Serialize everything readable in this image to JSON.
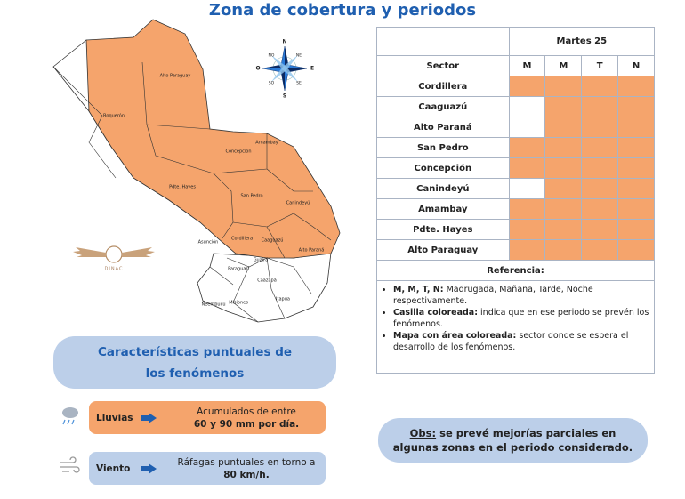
{
  "title": "Zona de cobertura y periodos",
  "map": {
    "labels": [
      "Alto Paraguay",
      "Boquerón",
      "Pdte. Hayes",
      "Concepción",
      "Amambay",
      "San Pedro",
      "Canindeyú",
      "Cordillera",
      "Caaguazú",
      "Alto Paraná",
      "Asunción",
      "Paraguarí",
      "Guairá",
      "Caazapá",
      "Ñeembucú",
      "Misiones",
      "Itapúa"
    ],
    "compass": [
      "N",
      "NO",
      "NE",
      "O",
      "E",
      "SO",
      "SE",
      "S"
    ],
    "logo": "DINAC",
    "color": "#f5a46c"
  },
  "table": {
    "day": "Martes 25",
    "sector_header": "Sector",
    "periods": [
      "M",
      "M",
      "T",
      "N"
    ],
    "active_color": "#f5a46c",
    "rows": [
      {
        "sector": "Cordillera",
        "active": [
          true,
          true,
          true,
          true
        ]
      },
      {
        "sector": "Caaguazú",
        "active": [
          false,
          true,
          true,
          true
        ]
      },
      {
        "sector": "Alto Paraná",
        "active": [
          false,
          true,
          true,
          true
        ]
      },
      {
        "sector": "San Pedro",
        "active": [
          true,
          true,
          true,
          true
        ]
      },
      {
        "sector": "Concepción",
        "active": [
          true,
          true,
          true,
          true
        ]
      },
      {
        "sector": "Canindeyú",
        "active": [
          false,
          true,
          true,
          true
        ]
      },
      {
        "sector": "Amambay",
        "active": [
          true,
          true,
          true,
          true
        ]
      },
      {
        "sector": "Pdte. Hayes",
        "active": [
          true,
          true,
          true,
          true
        ]
      },
      {
        "sector": "Alto Paraguay",
        "active": [
          true,
          true,
          true,
          true
        ]
      }
    ],
    "reference_header": "Referencia:",
    "notes": [
      {
        "bold": "M, M, T, N:",
        "text": " Madrugada, Mañana, Tarde, Noche respectivamente."
      },
      {
        "bold": "Casilla coloreada:",
        "text": " indica que en ese periodo se prevén los fenómenos."
      },
      {
        "bold": "Mapa con área coloreada:",
        "text": " sector donde se espera el desarrollo de los fenómenos."
      }
    ]
  },
  "features": {
    "title": "Características puntuales de los fenómenos",
    "items": [
      {
        "name": "Lluvias",
        "detail": "Acumulados de entre",
        "highlight": "60 y 90 mm por día."
      },
      {
        "name": "Viento",
        "detail": "Ráfagas puntuales en torno a",
        "highlight": "80 km/h."
      }
    ]
  },
  "obs": {
    "label": "Obs:",
    "text": " se prevé mejorías parciales en algunas zonas en el periodo considerado."
  }
}
